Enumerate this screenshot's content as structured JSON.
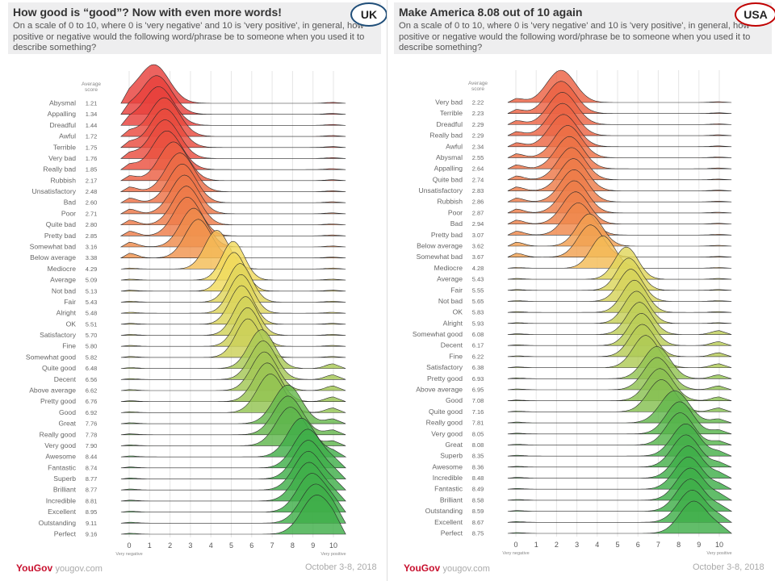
{
  "uk": {
    "title": "How good is “good”? Now with even more words!",
    "subtitle": "On a scale of 0 to 10, where 0 is 'very negative' and 10 is 'very positive', in general, how positive or negative would the following word/phrase be to someone when you used it to describe something?",
    "badge": "UK",
    "avg_header": "Average score",
    "footer_logo": "YouGov",
    "footer_site": "yougov.com",
    "footer_date": "October 3-8, 2018"
  },
  "usa": {
    "title": "Make America 8.08 out of 10 again",
    "subtitle": "On a scale of 0 to 10, where 0 is 'very negative' and 10 is 'very positive', in general, how positive or negative would the following word/phrase be to someone when you used it to describe something?",
    "badge": "USA",
    "avg_header": "Average score",
    "footer_logo": "YouGov",
    "footer_site": "yougov.com",
    "footer_date": "October 3-8, 2018"
  },
  "colors": {
    "negative": "#e8413c",
    "neutral": "#f7dc5e",
    "positive": "#3fae49",
    "line": "#2a2a2a",
    "header_bg": "#eeeeef",
    "uk_badge_border": "#1f4e79",
    "usa_badge_border": "#c00000"
  },
  "chart_data": [
    {
      "type": "ridgeline",
      "country": "UK",
      "x_ticks": [
        "0",
        "1",
        "2",
        "3",
        "4",
        "5",
        "6",
        "7",
        "8",
        "9",
        "10"
      ],
      "x_end_labels": [
        "Very negative",
        "Very positive"
      ],
      "xlim": [
        0,
        10
      ],
      "series": [
        {
          "name": "Abysmal",
          "value": 1.21
        },
        {
          "name": "Appalling",
          "value": 1.34
        },
        {
          "name": "Dreadful",
          "value": 1.44
        },
        {
          "name": "Awful",
          "value": 1.72
        },
        {
          "name": "Terrible",
          "value": 1.75
        },
        {
          "name": "Very bad",
          "value": 1.76
        },
        {
          "name": "Really bad",
          "value": 1.85
        },
        {
          "name": "Rubbish",
          "value": 2.17
        },
        {
          "name": "Unsatisfactory",
          "value": 2.48
        },
        {
          "name": "Bad",
          "value": 2.6
        },
        {
          "name": "Poor",
          "value": 2.71
        },
        {
          "name": "Quite bad",
          "value": 2.8
        },
        {
          "name": "Pretty bad",
          "value": 2.85
        },
        {
          "name": "Somewhat bad",
          "value": 3.16
        },
        {
          "name": "Below average",
          "value": 3.38
        },
        {
          "name": "Mediocre",
          "value": 4.29
        },
        {
          "name": "Average",
          "value": 5.09
        },
        {
          "name": "Not bad",
          "value": 5.13
        },
        {
          "name": "Fair",
          "value": 5.43
        },
        {
          "name": "Alright",
          "value": 5.48
        },
        {
          "name": "OK",
          "value": 5.51
        },
        {
          "name": "Satisfactory",
          "value": 5.7
        },
        {
          "name": "Fine",
          "value": 5.8
        },
        {
          "name": "Somewhat good",
          "value": 5.82
        },
        {
          "name": "Quite good",
          "value": 6.48
        },
        {
          "name": "Decent",
          "value": 6.56
        },
        {
          "name": "Above average",
          "value": 6.62
        },
        {
          "name": "Pretty good",
          "value": 6.76
        },
        {
          "name": "Good",
          "value": 6.92
        },
        {
          "name": "Great",
          "value": 7.76
        },
        {
          "name": "Really good",
          "value": 7.78
        },
        {
          "name": "Very good",
          "value": 7.9
        },
        {
          "name": "Awesome",
          "value": 8.44
        },
        {
          "name": "Fantastic",
          "value": 8.74
        },
        {
          "name": "Superb",
          "value": 8.77
        },
        {
          "name": "Brilliant",
          "value": 8.77
        },
        {
          "name": "Incredible",
          "value": 8.81
        },
        {
          "name": "Excellent",
          "value": 8.95
        },
        {
          "name": "Outstanding",
          "value": 9.11
        },
        {
          "name": "Perfect",
          "value": 9.16
        }
      ]
    },
    {
      "type": "ridgeline",
      "country": "USA",
      "x_ticks": [
        "0",
        "1",
        "2",
        "3",
        "4",
        "5",
        "6",
        "7",
        "8",
        "9",
        "10"
      ],
      "x_end_labels": [
        "Very negative",
        "Very positive"
      ],
      "xlim": [
        0,
        10
      ],
      "series": [
        {
          "name": "Very bad",
          "value": 2.22
        },
        {
          "name": "Terrible",
          "value": 2.23
        },
        {
          "name": "Dreadful",
          "value": 2.29
        },
        {
          "name": "Really bad",
          "value": 2.29
        },
        {
          "name": "Awful",
          "value": 2.34
        },
        {
          "name": "Abysmal",
          "value": 2.55
        },
        {
          "name": "Appalling",
          "value": 2.64
        },
        {
          "name": "Quite bad",
          "value": 2.74
        },
        {
          "name": "Unsatisfactory",
          "value": 2.83
        },
        {
          "name": "Rubbish",
          "value": 2.86
        },
        {
          "name": "Poor",
          "value": 2.87
        },
        {
          "name": "Bad",
          "value": 2.94
        },
        {
          "name": "Pretty bad",
          "value": 3.07
        },
        {
          "name": "Below average",
          "value": 3.62
        },
        {
          "name": "Somewhat bad",
          "value": 3.67
        },
        {
          "name": "Mediocre",
          "value": 4.28
        },
        {
          "name": "Average",
          "value": 5.43
        },
        {
          "name": "Fair",
          "value": 5.55
        },
        {
          "name": "Not bad",
          "value": 5.65
        },
        {
          "name": "OK",
          "value": 5.83
        },
        {
          "name": "Alright",
          "value": 5.93
        },
        {
          "name": "Somewhat good",
          "value": 6.08
        },
        {
          "name": "Decent",
          "value": 6.17
        },
        {
          "name": "Fine",
          "value": 6.22
        },
        {
          "name": "Satisfactory",
          "value": 6.38
        },
        {
          "name": "Pretty good",
          "value": 6.93
        },
        {
          "name": "Above average",
          "value": 6.95
        },
        {
          "name": "Good",
          "value": 7.08
        },
        {
          "name": "Quite good",
          "value": 7.16
        },
        {
          "name": "Really good",
          "value": 7.81
        },
        {
          "name": "Very good",
          "value": 8.05
        },
        {
          "name": "Great",
          "value": 8.08
        },
        {
          "name": "Superb",
          "value": 8.35
        },
        {
          "name": "Awesome",
          "value": 8.36
        },
        {
          "name": "Incredible",
          "value": 8.48
        },
        {
          "name": "Fantastic",
          "value": 8.49
        },
        {
          "name": "Brilliant",
          "value": 8.58
        },
        {
          "name": "Outstanding",
          "value": 8.59
        },
        {
          "name": "Excellent",
          "value": 8.67
        },
        {
          "name": "Perfect",
          "value": 8.75
        }
      ]
    }
  ]
}
